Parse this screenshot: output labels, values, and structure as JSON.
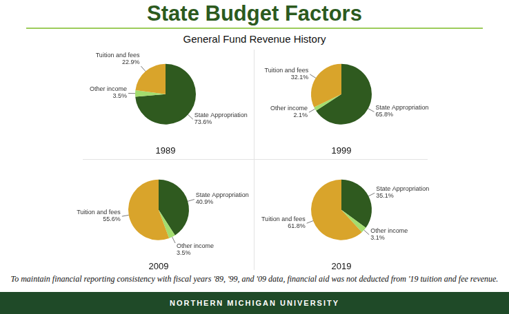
{
  "title": "State Budget Factors",
  "subtitle": "General Fund Revenue History",
  "chart_data": [
    {
      "type": "pie",
      "title": "1989",
      "categories": [
        "State Appropriation",
        "Other income",
        "Tuition and fees"
      ],
      "values": [
        73.6,
        3.5,
        22.9
      ],
      "value_labels": [
        "73.6%",
        "3.5%",
        "22.9%"
      ],
      "colors": [
        "#2f5a1f",
        "#a3dd6e",
        "#d9a42b"
      ],
      "data_labels": true
    },
    {
      "type": "pie",
      "title": "1999",
      "categories": [
        "State Appropriation",
        "Other income",
        "Tuition and fees"
      ],
      "values": [
        65.8,
        2.1,
        32.1
      ],
      "value_labels": [
        "65.8%",
        "2.1%",
        "32.1%"
      ],
      "colors": [
        "#2f5a1f",
        "#a3dd6e",
        "#d9a42b"
      ],
      "data_labels": true
    },
    {
      "type": "pie",
      "title": "2009",
      "categories": [
        "State Appropriation",
        "Other income",
        "Tuition and fees"
      ],
      "values": [
        40.9,
        3.5,
        55.6
      ],
      "value_labels": [
        "40.9%",
        "3.5%",
        "55.6%"
      ],
      "colors": [
        "#2f5a1f",
        "#a3dd6e",
        "#d9a42b"
      ],
      "data_labels": true
    },
    {
      "type": "pie",
      "title": "2019",
      "categories": [
        "State Appropriation",
        "Other income",
        "Tuition and fees"
      ],
      "values": [
        35.1,
        3.1,
        61.8
      ],
      "value_labels": [
        "35.1%",
        "3.1%",
        "61.8%"
      ],
      "colors": [
        "#2f5a1f",
        "#a3dd6e",
        "#d9a42b"
      ],
      "data_labels": true
    }
  ],
  "footnote": "To maintain financial reporting consistency with fiscal years '89, '99, and '09 data, financial aid was not deducted from '19 tuition and fee revenue.",
  "footer": "NORTHERN MICHIGAN UNIVERSITY"
}
